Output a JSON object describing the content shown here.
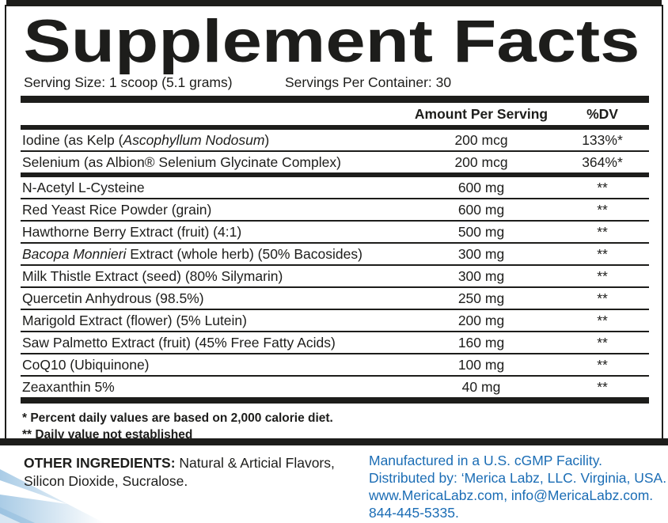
{
  "colors": {
    "text_black": "#1d1d1b",
    "link_blue": "#1b6db5",
    "corner_blue_light": "#aacce6",
    "corner_blue_mid": "#8fbcdd"
  },
  "panel": {
    "title": "Supplement Facts",
    "serving_size": "Serving Size: 1 scoop (5.1 grams)",
    "servings_per_container": "Servings Per Container: 30",
    "columns": {
      "amount": "Amount Per Serving",
      "dv": "%DV"
    },
    "rows": [
      {
        "sep": "none",
        "name_parts": [
          {
            "t": "Iodine (as Kelp ("
          },
          {
            "t": "Ascophyllum Nodosum",
            "i": true
          },
          {
            "t": ")"
          }
        ],
        "amount": "200 mcg",
        "dv": "133%*"
      },
      {
        "sep": "thin",
        "name_parts": [
          {
            "t": "Selenium (as Albion® Selenium Glycinate Complex)"
          }
        ],
        "amount": "200 mcg",
        "dv": "364%*"
      },
      {
        "sep": "thick",
        "name_parts": [
          {
            "t": "N-Acetyl L-Cysteine"
          }
        ],
        "amount": "600 mg",
        "dv": "**"
      },
      {
        "sep": "thin",
        "name_parts": [
          {
            "t": "Red Yeast Rice Powder (grain)"
          }
        ],
        "amount": "600 mg",
        "dv": "**"
      },
      {
        "sep": "thin",
        "name_parts": [
          {
            "t": "Hawthorne Berry Extract (fruit) (4:1)"
          }
        ],
        "amount": "500 mg",
        "dv": "**"
      },
      {
        "sep": "thin",
        "name_parts": [
          {
            "t": "Bacopa Monnieri",
            "i": true
          },
          {
            "t": " Extract (whole herb) (50% Bacosides)"
          }
        ],
        "amount": "300 mg",
        "dv": "**"
      },
      {
        "sep": "thin",
        "name_parts": [
          {
            "t": "Milk Thistle Extract (seed) (80% Silymarin)"
          }
        ],
        "amount": "300 mg",
        "dv": "**"
      },
      {
        "sep": "thin",
        "name_parts": [
          {
            "t": "Quercetin Anhydrous (98.5%)"
          }
        ],
        "amount": "250 mg",
        "dv": "**"
      },
      {
        "sep": "thin",
        "name_parts": [
          {
            "t": "Marigold Extract (flower) (5% Lutein)"
          }
        ],
        "amount": "200 mg",
        "dv": "**"
      },
      {
        "sep": "thin",
        "name_parts": [
          {
            "t": "Saw Palmetto Extract (fruit) (45% Free Fatty Acids)"
          }
        ],
        "amount": "160 mg",
        "dv": "**"
      },
      {
        "sep": "thin",
        "name_parts": [
          {
            "t": "CoQ10 (Ubiquinone)"
          }
        ],
        "amount": "100 mg",
        "dv": "**"
      },
      {
        "sep": "thin",
        "name_parts": [
          {
            "t": "Zeaxanthin 5%"
          }
        ],
        "amount": "40 mg",
        "dv": "**"
      }
    ],
    "footnotes": [
      "* Percent daily values are based on 2,000 calorie diet.",
      "** Daily value not established"
    ]
  },
  "other_ingredients": {
    "label": "OTHER INGREDIENTS:",
    "text": "Natural & Articial Flavors, Silicon Dioxide, Sucralose."
  },
  "manufacturer": {
    "lines": [
      "Manufactured in a U.S. cGMP Facility.",
      "Distributed by: ‘Merica Labz, LLC. Virginia, USA.",
      "www.MericaLabz.com, info@MericaLabz.com.",
      "844-445-5335."
    ]
  }
}
